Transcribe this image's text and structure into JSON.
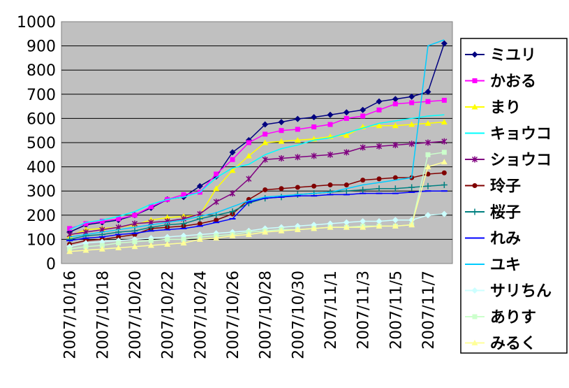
{
  "chart_data": {
    "type": "line",
    "title": "",
    "xlabel": "",
    "ylabel": "",
    "ylim": [
      0,
      1000
    ],
    "y_ticks": [
      0,
      100,
      200,
      300,
      400,
      500,
      600,
      700,
      800,
      900,
      1000
    ],
    "x_tick_labels": [
      "2007/10/16",
      "2007/10/18",
      "2007/10/20",
      "2007/10/22",
      "2007/10/24",
      "2007/10/26",
      "2007/10/28",
      "2007/10/30",
      "2007/11/1",
      "2007/11/3",
      "2007/11/5",
      "2007/11/7"
    ],
    "x": [
      "2007/10/16",
      "2007/10/17",
      "2007/10/18",
      "2007/10/19",
      "2007/10/20",
      "2007/10/21",
      "2007/10/22",
      "2007/10/23",
      "2007/10/24",
      "2007/10/25",
      "2007/10/26",
      "2007/10/27",
      "2007/10/28",
      "2007/10/29",
      "2007/10/30",
      "2007/10/31",
      "2007/11/1",
      "2007/11/2",
      "2007/11/3",
      "2007/11/4",
      "2007/11/5",
      "2007/11/6",
      "2007/11/7",
      "2007/11/8"
    ],
    "grid": "horizontal",
    "plot_background": "#c0c0c0",
    "legend_position": "right",
    "series": [
      {
        "name": "ミユリ",
        "color": "#000080",
        "marker": "diamond",
        "values": [
          130,
          160,
          170,
          180,
          200,
          230,
          265,
          275,
          320,
          360,
          460,
          510,
          575,
          585,
          598,
          605,
          615,
          625,
          635,
          670,
          680,
          690,
          710,
          910
        ]
      },
      {
        "name": "かおる",
        "color": "#ff00ff",
        "marker": "square",
        "values": [
          145,
          165,
          175,
          185,
          200,
          235,
          265,
          285,
          295,
          370,
          430,
          500,
          535,
          550,
          555,
          565,
          575,
          600,
          610,
          635,
          660,
          665,
          670,
          675
        ]
      },
      {
        "name": "まり",
        "color": "#ffff00",
        "marker": "triangle",
        "values": [
          115,
          140,
          145,
          150,
          160,
          180,
          190,
          195,
          200,
          310,
          385,
          445,
          500,
          505,
          510,
          515,
          525,
          530,
          565,
          570,
          570,
          575,
          580,
          585
        ]
      },
      {
        "name": "キョウコ",
        "color": "#00ffff",
        "marker": "none",
        "values": [
          140,
          170,
          180,
          195,
          215,
          245,
          265,
          275,
          295,
          355,
          395,
          410,
          450,
          475,
          490,
          510,
          520,
          540,
          560,
          580,
          590,
          600,
          610,
          615
        ]
      },
      {
        "name": "ショウコ",
        "color": "#800080",
        "marker": "star",
        "values": [
          120,
          130,
          140,
          150,
          165,
          170,
          175,
          185,
          205,
          255,
          290,
          350,
          430,
          435,
          440,
          445,
          450,
          460,
          480,
          485,
          490,
          495,
          500,
          505
        ]
      },
      {
        "name": "玲子",
        "color": "#800000",
        "marker": "circle",
        "values": [
          80,
          95,
          100,
          110,
          120,
          145,
          150,
          155,
          165,
          180,
          205,
          265,
          305,
          310,
          315,
          320,
          325,
          325,
          345,
          350,
          355,
          355,
          370,
          375
        ]
      },
      {
        "name": "桜子",
        "color": "#008080",
        "marker": "plus",
        "values": [
          100,
          115,
          120,
          130,
          135,
          150,
          160,
          165,
          185,
          200,
          215,
          250,
          270,
          275,
          285,
          290,
          295,
          300,
          305,
          310,
          310,
          315,
          320,
          325
        ]
      },
      {
        "name": "れみ",
        "color": "#0000ff",
        "marker": "dash",
        "values": [
          95,
          105,
          110,
          120,
          125,
          135,
          140,
          145,
          155,
          170,
          185,
          255,
          270,
          275,
          280,
          280,
          285,
          285,
          290,
          290,
          290,
          295,
          300,
          300
        ]
      },
      {
        "name": "ユキ",
        "color": "#00ccff",
        "marker": "none",
        "values": [
          110,
          120,
          130,
          140,
          150,
          160,
          170,
          180,
          195,
          210,
          235,
          260,
          275,
          280,
          285,
          290,
          295,
          310,
          325,
          335,
          345,
          355,
          900,
          925
        ]
      },
      {
        "name": "サリちん",
        "color": "#ccffff",
        "marker": "diamond",
        "values": [
          70,
          85,
          90,
          95,
          100,
          105,
          110,
          115,
          120,
          125,
          130,
          135,
          145,
          150,
          155,
          160,
          165,
          170,
          175,
          175,
          180,
          180,
          200,
          205
        ]
      },
      {
        "name": "ありす",
        "color": "#ccffcc",
        "marker": "square",
        "values": [
          60,
          70,
          75,
          85,
          90,
          95,
          100,
          100,
          110,
          115,
          120,
          130,
          135,
          140,
          140,
          145,
          150,
          150,
          155,
          155,
          155,
          160,
          450,
          460
        ]
      },
      {
        "name": "みるく",
        "color": "#ffff99",
        "marker": "triangle",
        "values": [
          50,
          55,
          60,
          65,
          70,
          75,
          80,
          85,
          100,
          105,
          115,
          120,
          130,
          135,
          140,
          145,
          150,
          150,
          150,
          155,
          155,
          160,
          400,
          420
        ]
      }
    ]
  }
}
